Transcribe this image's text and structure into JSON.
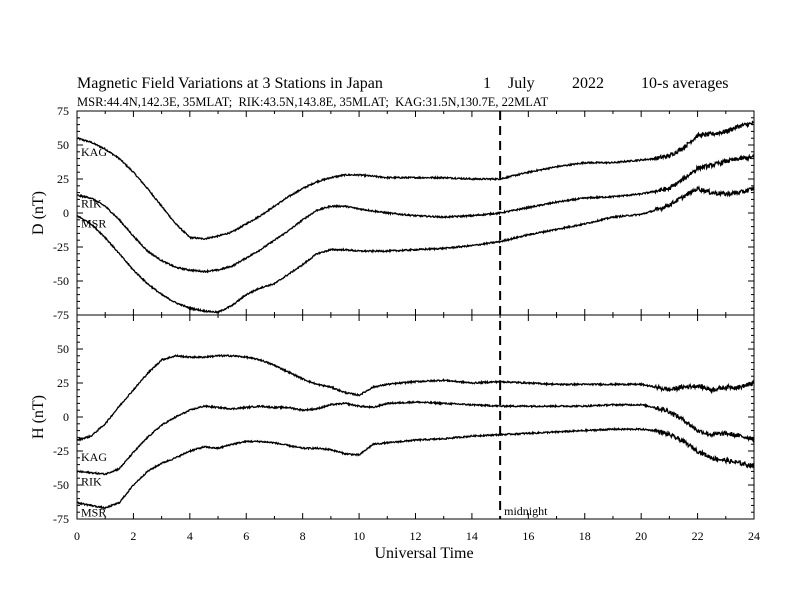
{
  "chart_data": {
    "type": "line",
    "title": "Magnetic Field Variations at 3 Stations in Japan",
    "date": {
      "day": "1",
      "month": "July",
      "year": "2022"
    },
    "averaging": "10-s averages",
    "stations_line": "MSR:44.4N,142.3E, 35MLAT;  RIK:43.5N,143.8E, 35MLAT;  KAG:31.5N,130.7E, 22MLAT",
    "xlabel": "Universal Time",
    "xlim": [
      0,
      24
    ],
    "x_ticks": [
      "0",
      "2",
      "4",
      "6",
      "8",
      "10",
      "12",
      "14",
      "16",
      "18",
      "20",
      "22",
      "24"
    ],
    "midnight": {
      "x": 15,
      "label": "midnight"
    },
    "panels": [
      {
        "ylabel": "D (nT)",
        "ylim": [
          -75,
          75
        ],
        "y_ticks": [
          "75",
          "50",
          "25",
          "0",
          "-25",
          "-50",
          "-75"
        ],
        "series": [
          {
            "name": "KAG",
            "x": [
              0,
              0.5,
              1,
              1.5,
              2,
              2.5,
              3,
              3.5,
              4,
              4.5,
              5,
              5.5,
              6,
              6.5,
              7,
              7.5,
              8,
              8.5,
              9,
              9.5,
              10,
              11,
              12,
              13,
              14,
              15,
              16,
              17,
              18,
              19,
              20,
              20.5,
              21,
              21.5,
              22,
              22.5,
              23,
              23.5,
              24
            ],
            "y": [
              55,
              52,
              47,
              40,
              30,
              18,
              5,
              -8,
              -18,
              -19,
              -17,
              -14,
              -8,
              -2,
              5,
              12,
              18,
              23,
              26,
              28,
              28,
              26,
              26,
              26,
              25,
              25,
              30,
              34,
              37,
              37,
              39,
              40,
              42,
              48,
              57,
              58,
              60,
              64,
              66
            ]
          },
          {
            "name": "RIK",
            "x": [
              0,
              0.5,
              1,
              1.5,
              2,
              2.5,
              3,
              3.5,
              4,
              4.5,
              5,
              5.5,
              6,
              6.5,
              7,
              7.5,
              8,
              8.5,
              9,
              9.5,
              10,
              11,
              12,
              13,
              14,
              15,
              16,
              17,
              18,
              19,
              20,
              20.5,
              21,
              21.5,
              22,
              22.5,
              23,
              23.5,
              24
            ],
            "y": [
              13,
              11,
              5,
              -5,
              -17,
              -28,
              -35,
              -40,
              -42,
              -43,
              -42,
              -39,
              -33,
              -27,
              -20,
              -13,
              -5,
              2,
              5,
              5,
              3,
              0,
              -2,
              -3,
              -2,
              0,
              4,
              8,
              11,
              12,
              14,
              16,
              18,
              25,
              33,
              35,
              38,
              40,
              41
            ]
          },
          {
            "name": "MSR",
            "x": [
              0,
              0.5,
              1,
              1.5,
              2,
              2.5,
              3,
              3.5,
              4,
              4.5,
              5,
              5.5,
              6,
              6.5,
              7,
              7.5,
              8,
              8.5,
              9,
              9.5,
              10,
              11,
              12,
              13,
              14,
              15,
              16,
              17,
              18,
              19,
              20,
              20.5,
              21,
              21.5,
              22,
              22.5,
              23,
              23.5,
              24
            ],
            "y": [
              -2,
              -8,
              -18,
              -30,
              -42,
              -52,
              -60,
              -66,
              -70,
              -72,
              -73,
              -68,
              -60,
              -55,
              -52,
              -45,
              -38,
              -30,
              -27,
              -27,
              -28,
              -28,
              -27,
              -26,
              -24,
              -21,
              -16,
              -12,
              -8,
              -3,
              -1,
              2,
              6,
              12,
              18,
              15,
              14,
              15,
              18
            ]
          }
        ]
      },
      {
        "ylabel": "H (nT)",
        "ylim": [
          -75,
          75
        ],
        "y_ticks": [
          "50",
          "25",
          "0",
          "-25",
          "-50",
          "-75"
        ],
        "series": [
          {
            "name": "KAG",
            "x": [
              0,
              0.5,
              1,
              1.5,
              2,
              2.5,
              3,
              3.5,
              4,
              4.5,
              5,
              5.5,
              6,
              6.5,
              7,
              7.5,
              8,
              8.5,
              9,
              9.5,
              10,
              10.5,
              11,
              12,
              13,
              14,
              15,
              16,
              17,
              18,
              19,
              20,
              20.5,
              21,
              21.5,
              22,
              22.5,
              23,
              23.5,
              24
            ],
            "y": [
              -17,
              -14,
              -5,
              8,
              20,
              32,
              42,
              45,
              44,
              44,
              45,
              45,
              44,
              42,
              38,
              33,
              28,
              24,
              22,
              18,
              16,
              22,
              24,
              26,
              27,
              25,
              26,
              25,
              24,
              24,
              24,
              24,
              22,
              20,
              22,
              23,
              20,
              22,
              22,
              25
            ]
          },
          {
            "name": "RIK",
            "x": [
              0,
              0.5,
              1,
              1.5,
              2,
              2.5,
              3,
              3.5,
              4,
              4.5,
              5,
              5.5,
              6,
              6.5,
              7,
              7.5,
              8,
              8.5,
              9,
              9.5,
              10,
              10.5,
              11,
              12,
              13,
              14,
              15,
              16,
              17,
              18,
              19,
              20,
              20.5,
              21,
              21.5,
              22,
              22.5,
              23,
              23.5,
              24
            ],
            "y": [
              -40,
              -41,
              -42,
              -38,
              -26,
              -15,
              -6,
              0,
              5,
              8,
              7,
              6,
              7,
              8,
              7,
              7,
              5,
              6,
              9,
              10,
              8,
              7,
              10,
              11,
              10,
              9,
              8,
              8,
              8,
              8,
              9,
              9,
              7,
              4,
              -2,
              -10,
              -13,
              -12,
              -14,
              -16
            ]
          },
          {
            "name": "MSR",
            "x": [
              0,
              0.5,
              1,
              1.5,
              2,
              2.5,
              3,
              3.5,
              4,
              4.5,
              5,
              5.5,
              6,
              6.5,
              7,
              7.5,
              8,
              8.5,
              9,
              9.5,
              10,
              10.5,
              11,
              12,
              13,
              14,
              15,
              16,
              17,
              18,
              19,
              20,
              20.5,
              21,
              21.5,
              22,
              22.5,
              23,
              23.5,
              24
            ],
            "y": [
              -63,
              -65,
              -67,
              -63,
              -50,
              -40,
              -34,
              -30,
              -25,
              -22,
              -23,
              -20,
              -18,
              -18,
              -19,
              -21,
              -23,
              -23,
              -24,
              -27,
              -28,
              -20,
              -19,
              -17,
              -16,
              -14,
              -13,
              -12,
              -11,
              -10,
              -9,
              -9,
              -10,
              -13,
              -18,
              -25,
              -30,
              -32,
              -34,
              -36
            ]
          }
        ]
      }
    ]
  }
}
